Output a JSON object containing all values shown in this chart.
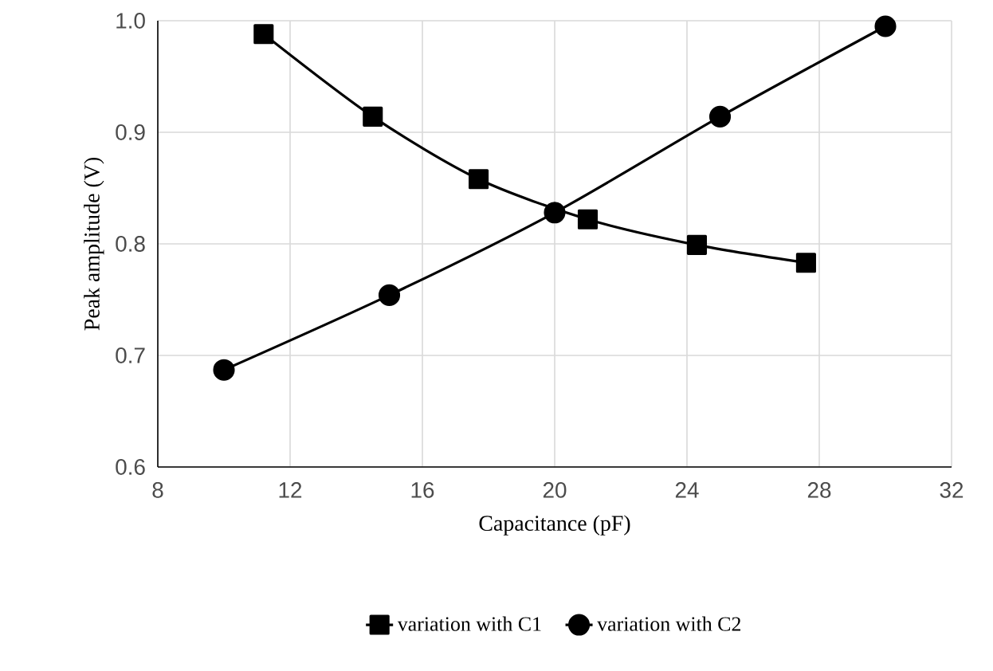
{
  "chart_data": {
    "type": "line",
    "xlabel": "Capacitance (pF)",
    "ylabel": "Peak amplitude (V)",
    "xlim": [
      8,
      32
    ],
    "xticks": [
      8,
      12,
      16,
      20,
      24,
      28,
      32
    ],
    "ylim": [
      0.6,
      1.0
    ],
    "yticks": [
      0.6,
      0.7,
      0.8,
      0.9,
      {
        "value": 1.0,
        "label": "1.0"
      }
    ],
    "grid": true,
    "legend": "bottom",
    "series": [
      {
        "name": "variation with C1",
        "color": "#000000",
        "marker": "square",
        "x": [
          11.2,
          14.5,
          17.7,
          21.0,
          24.3,
          27.6
        ],
        "values": [
          0.988,
          0.914,
          0.858,
          0.822,
          0.799,
          0.783
        ]
      },
      {
        "name": "variation with C2",
        "color": "#000000",
        "marker": "circle",
        "x": [
          10,
          15,
          20,
          25,
          30
        ],
        "values": [
          0.687,
          0.754,
          0.828,
          0.914,
          0.995
        ]
      }
    ]
  }
}
